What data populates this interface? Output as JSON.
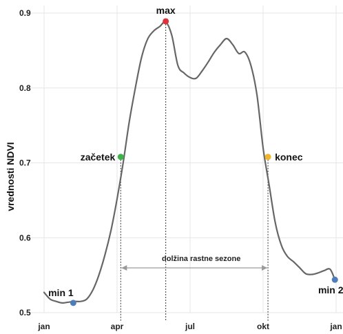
{
  "chart_data": {
    "type": "line",
    "ylabel": "vrednosti NDVI",
    "xlabel": "",
    "title": "",
    "ylim": [
      0.5,
      0.9
    ],
    "yticks": [
      "0.5",
      "0.6",
      "0.7",
      "0.8",
      "0.9"
    ],
    "xticks": [
      {
        "label": "jan",
        "month": 1
      },
      {
        "label": "apr",
        "month": 4
      },
      {
        "label": "jul",
        "month": 7
      },
      {
        "label": "okt",
        "month": 10
      },
      {
        "label": "jan",
        "month": 13
      }
    ],
    "grid": true,
    "line_color": "#666666",
    "series": [
      {
        "x": [
          1.0,
          1.25,
          1.5,
          1.75,
          2.0,
          2.25,
          2.5,
          2.75,
          3.0,
          3.25,
          3.5,
          3.75,
          4.0,
          4.25,
          4.5,
          4.75,
          5.0,
          5.25,
          5.5,
          5.75,
          6.0,
          6.25,
          6.5,
          6.75,
          7.0,
          7.25,
          7.5,
          7.75,
          8.0,
          8.25,
          8.5,
          8.75,
          9.0,
          9.25,
          9.5,
          9.75,
          10.0,
          10.25,
          10.5,
          10.75,
          11.0,
          11.25,
          11.5,
          11.75,
          12.0,
          12.25,
          12.5,
          12.75,
          12.95
        ],
        "y": [
          0.527,
          0.518,
          0.515,
          0.513,
          0.514,
          0.515,
          0.515,
          0.518,
          0.53,
          0.55,
          0.577,
          0.61,
          0.652,
          0.7,
          0.755,
          0.8,
          0.84,
          0.865,
          0.876,
          0.882,
          0.888,
          0.87,
          0.83,
          0.82,
          0.814,
          0.813,
          0.823,
          0.835,
          0.848,
          0.858,
          0.866,
          0.858,
          0.846,
          0.848,
          0.83,
          0.79,
          0.72,
          0.67,
          0.62,
          0.59,
          0.575,
          0.568,
          0.56,
          0.552,
          0.551,
          0.553,
          0.556,
          0.558,
          0.544
        ]
      }
    ],
    "points": [
      {
        "label": "min 1",
        "x": 2.2,
        "y": 0.513,
        "color": "#4e7db8"
      },
      {
        "label": "začetek",
        "x": 4.15,
        "y": 0.708,
        "color": "#3db34a"
      },
      {
        "label": "max",
        "x": 6.0,
        "y": 0.889,
        "color": "#e0323c"
      },
      {
        "label": "konec",
        "x": 10.2,
        "y": 0.708,
        "color": "#f0b52a"
      },
      {
        "label": "min 2",
        "x": 12.95,
        "y": 0.544,
        "color": "#4e7db8"
      }
    ],
    "span": {
      "label": "dolžina rastne sezone",
      "from": 4.15,
      "to": 10.2,
      "y": 0.56
    }
  }
}
